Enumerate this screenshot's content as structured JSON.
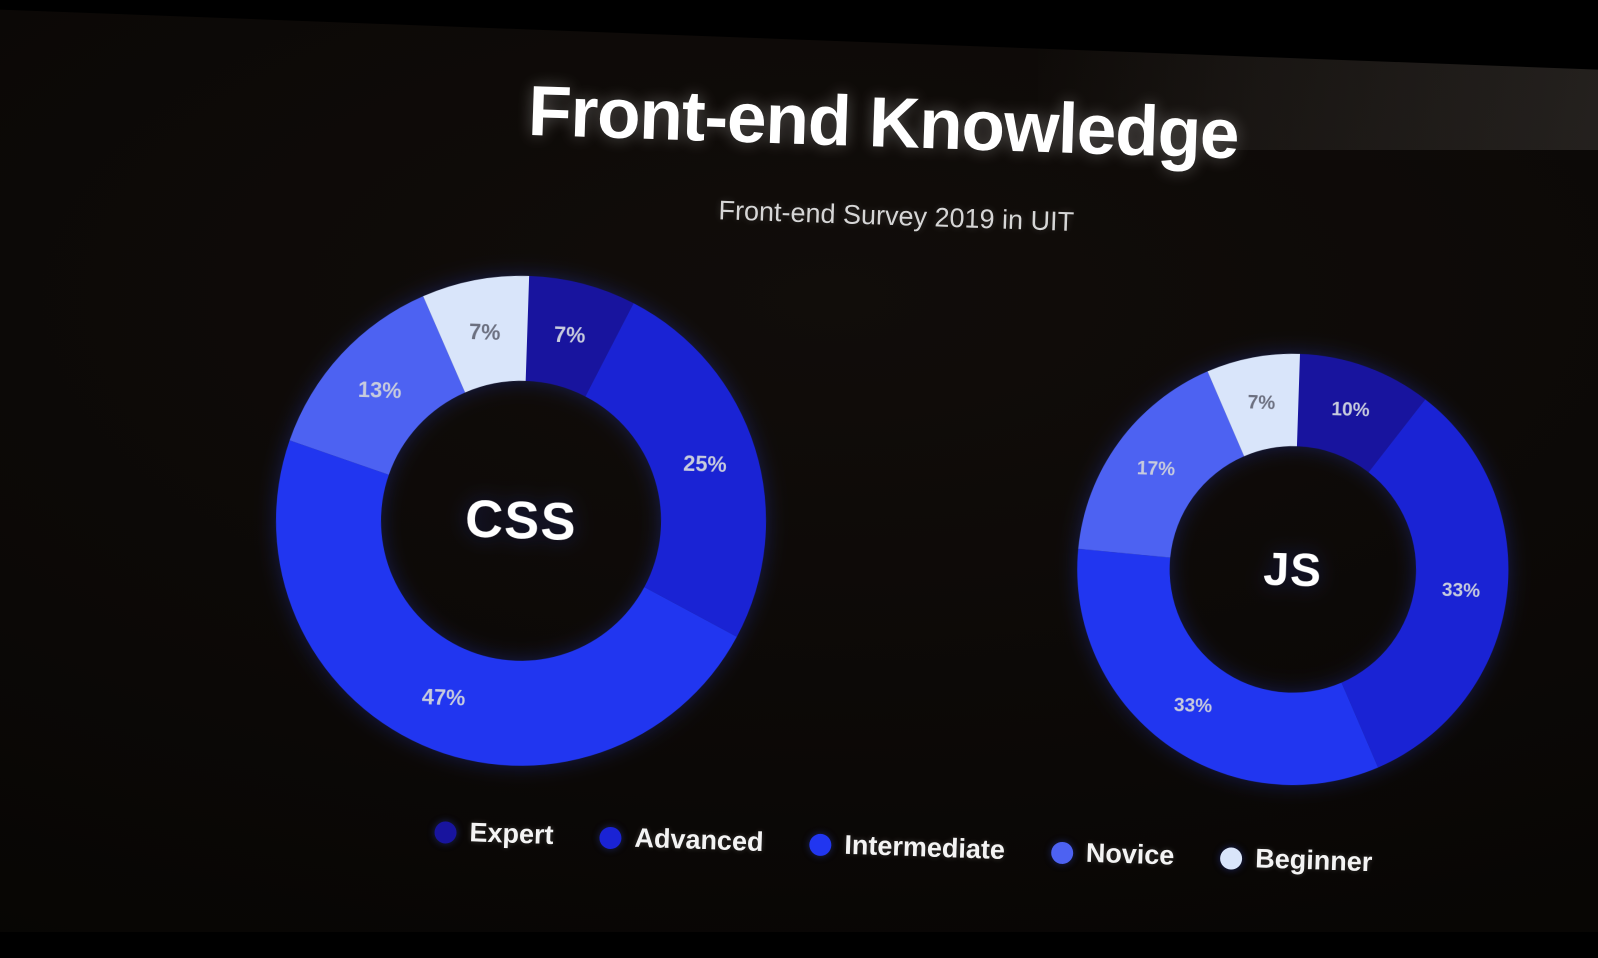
{
  "slide": {
    "title": "Front-end Knowledge",
    "subtitle": "Front-end Survey 2019 in UIT"
  },
  "legend": {
    "position": "bottom",
    "items": [
      {
        "label": "Expert",
        "color": "#18149e"
      },
      {
        "label": "Advanced",
        "color": "#1a23d4"
      },
      {
        "label": "Intermediate",
        "color": "#2136f0"
      },
      {
        "label": "Novice",
        "color": "#4d62f2"
      },
      {
        "label": "Beginner",
        "color": "#d9e5fa"
      }
    ]
  },
  "chart_data": [
    {
      "type": "pie",
      "variant": "donut",
      "title": "CSS",
      "categories": [
        "Expert",
        "Advanced",
        "Intermediate",
        "Novice",
        "Beginner"
      ],
      "values": [
        7,
        25,
        47,
        13,
        7
      ],
      "labels": [
        "7%",
        "25%",
        "47%",
        "13%",
        "7%"
      ],
      "colors": [
        "#18149e",
        "#1a23d4",
        "#2136f0",
        "#4d62f2",
        "#d9e5fa"
      ],
      "cutout": "57%",
      "start_angle": "top",
      "direction": "clockwise",
      "legend_position": "bottom"
    },
    {
      "type": "pie",
      "variant": "donut",
      "title": "JS",
      "categories": [
        "Expert",
        "Advanced",
        "Intermediate",
        "Novice",
        "Beginner"
      ],
      "values": [
        10,
        33,
        33,
        17,
        7
      ],
      "labels": [
        "10%",
        "33%",
        "33%",
        "17%",
        "7%"
      ],
      "colors": [
        "#18149e",
        "#1a23d4",
        "#2136f0",
        "#4d62f2",
        "#d9e5fa"
      ],
      "cutout": "57%",
      "start_angle": "top",
      "direction": "clockwise",
      "legend_position": "bottom"
    }
  ]
}
